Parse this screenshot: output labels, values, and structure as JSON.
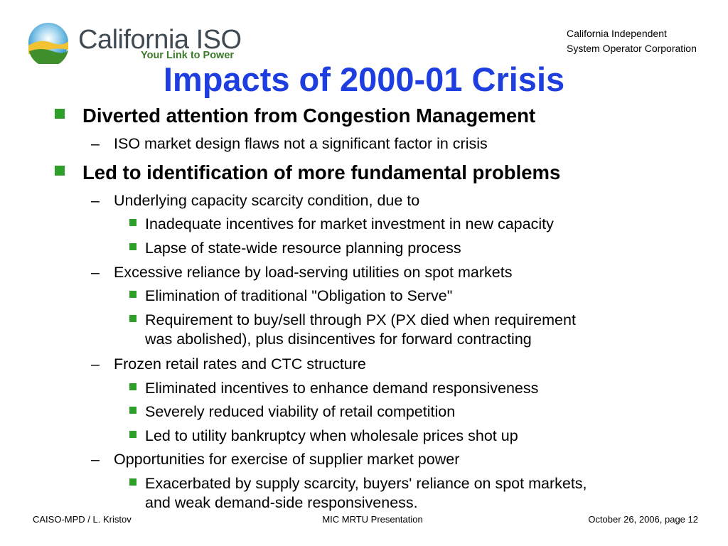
{
  "header": {
    "logo": {
      "name": "California ISO",
      "tagline": "Your Link to Power"
    },
    "corporation_lines": [
      "California Independent",
      "System Operator Corporation"
    ]
  },
  "title": "Impacts of 2000-01 Crisis",
  "bullets": [
    {
      "text": "Diverted attention from Congestion Management",
      "children": [
        {
          "text": "ISO market design flaws not a significant factor in crisis",
          "children": []
        }
      ]
    },
    {
      "text": "Led to identification of more fundamental problems",
      "children": [
        {
          "text": "Underlying capacity scarcity condition, due to",
          "children": [
            {
              "text": "Inadequate incentives for market investment in new capacity"
            },
            {
              "text": "Lapse of state-wide resource planning process"
            }
          ]
        },
        {
          "text": "Excessive reliance by load-serving utilities on spot markets",
          "children": [
            {
              "text": "Elimination of traditional \"Obligation to Serve\""
            },
            {
              "lines": [
                "Requirement to buy/sell through PX (PX died when requirement",
                "was abolished), plus disincentives for forward contracting"
              ]
            }
          ]
        },
        {
          "text": "Frozen retail rates and CTC structure",
          "children": [
            {
              "text": "Eliminated incentives to enhance demand responsiveness"
            },
            {
              "text": "Severely reduced viability of retail competition"
            },
            {
              "text": "Led to utility bankruptcy when wholesale prices shot up"
            }
          ]
        },
        {
          "text": "Opportunities for exercise of supplier market power",
          "children": [
            {
              "lines": [
                "Exacerbated by supply scarcity, buyers' reliance on spot markets,",
                "and weak demand-side responsiveness."
              ]
            }
          ]
        }
      ]
    }
  ],
  "footer": {
    "left": "CAISO-MPD / L. Kristov",
    "center": "MIC MRTU Presentation",
    "right": "October 26, 2006, page 12"
  },
  "colors": {
    "title": "#1e3ee0",
    "bullet": "#2ca028",
    "logo_text": "#404a52",
    "tagline": "#3d7a2a"
  }
}
